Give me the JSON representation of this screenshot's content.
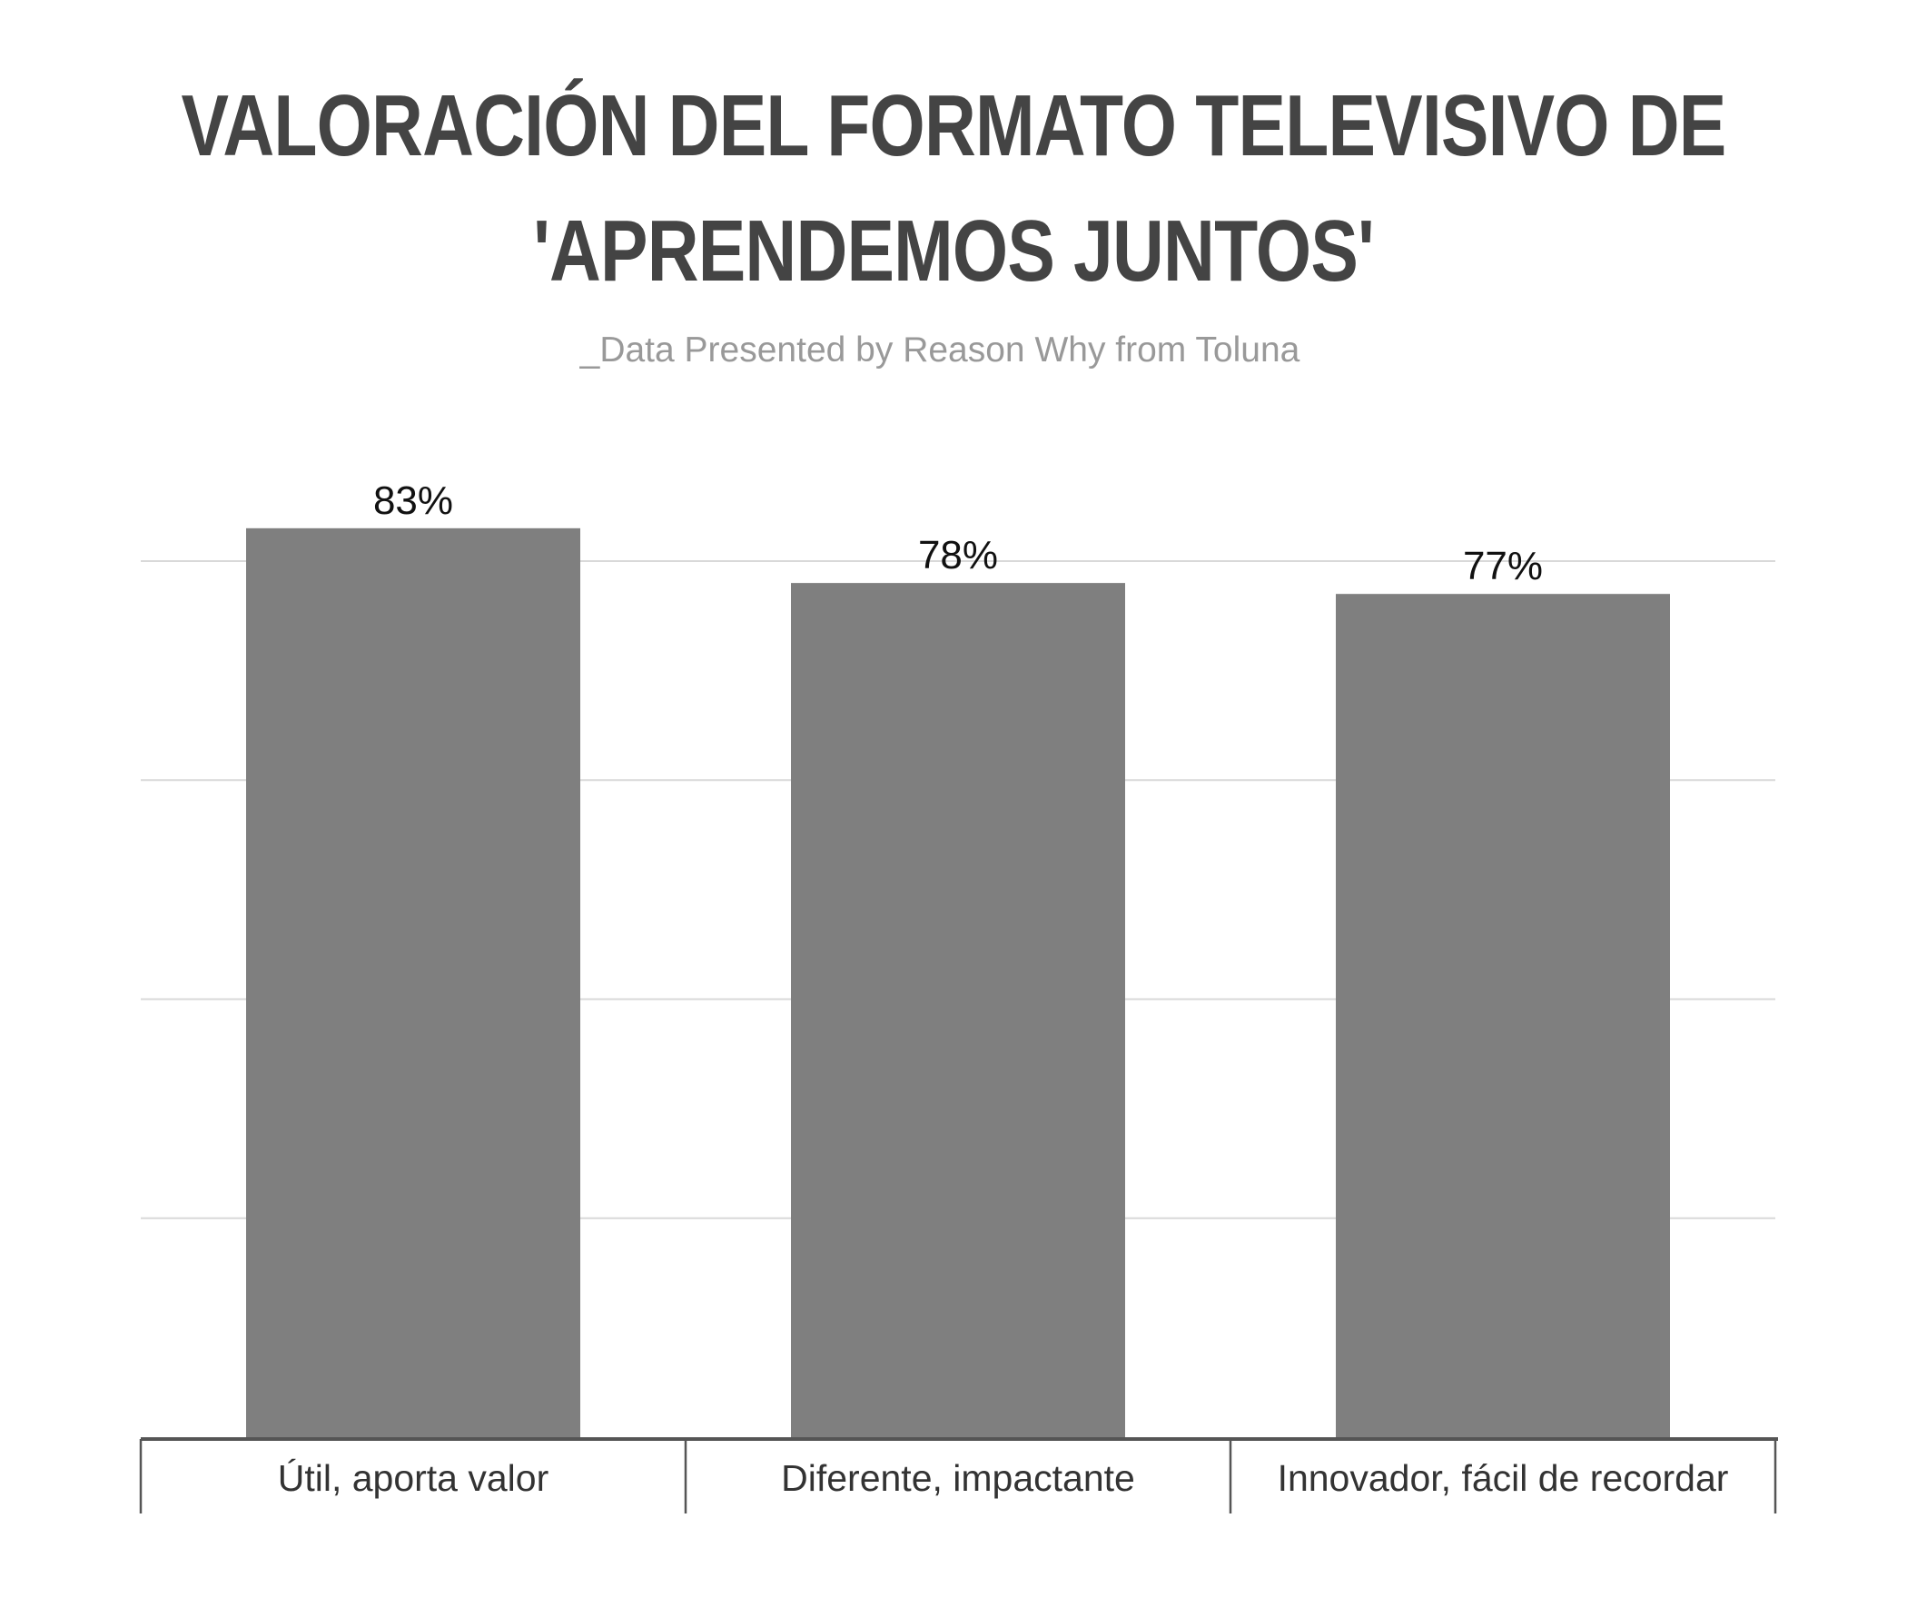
{
  "title_line1": "VALORACIÓN DEL FORMATO TELEVISIVO DE",
  "title_line2": "'APRENDEMOS JUNTOS'",
  "subtitle": "_Data Presented by Reason Why from Toluna",
  "colors": {
    "bar": "#7f7f7f",
    "grid": "#d9d9d9",
    "axis": "#555555",
    "title": "#444444",
    "subtitle": "#999999"
  },
  "chart_data": {
    "type": "bar",
    "title": "VALORACIÓN DEL FORMATO TELEVISIVO DE 'APRENDEMOS JUNTOS'",
    "subtitle": "_Data Presented by Reason Why from Toluna",
    "categories": [
      "Útil, aporta valor",
      "Diferente, impactante",
      "Innovador, fácil de recordar"
    ],
    "values": [
      83,
      78,
      77
    ],
    "value_labels": [
      "83%",
      "78%",
      "77%"
    ],
    "ylim": [
      0,
      80
    ],
    "grid": true,
    "xlabel": "",
    "ylabel": ""
  }
}
